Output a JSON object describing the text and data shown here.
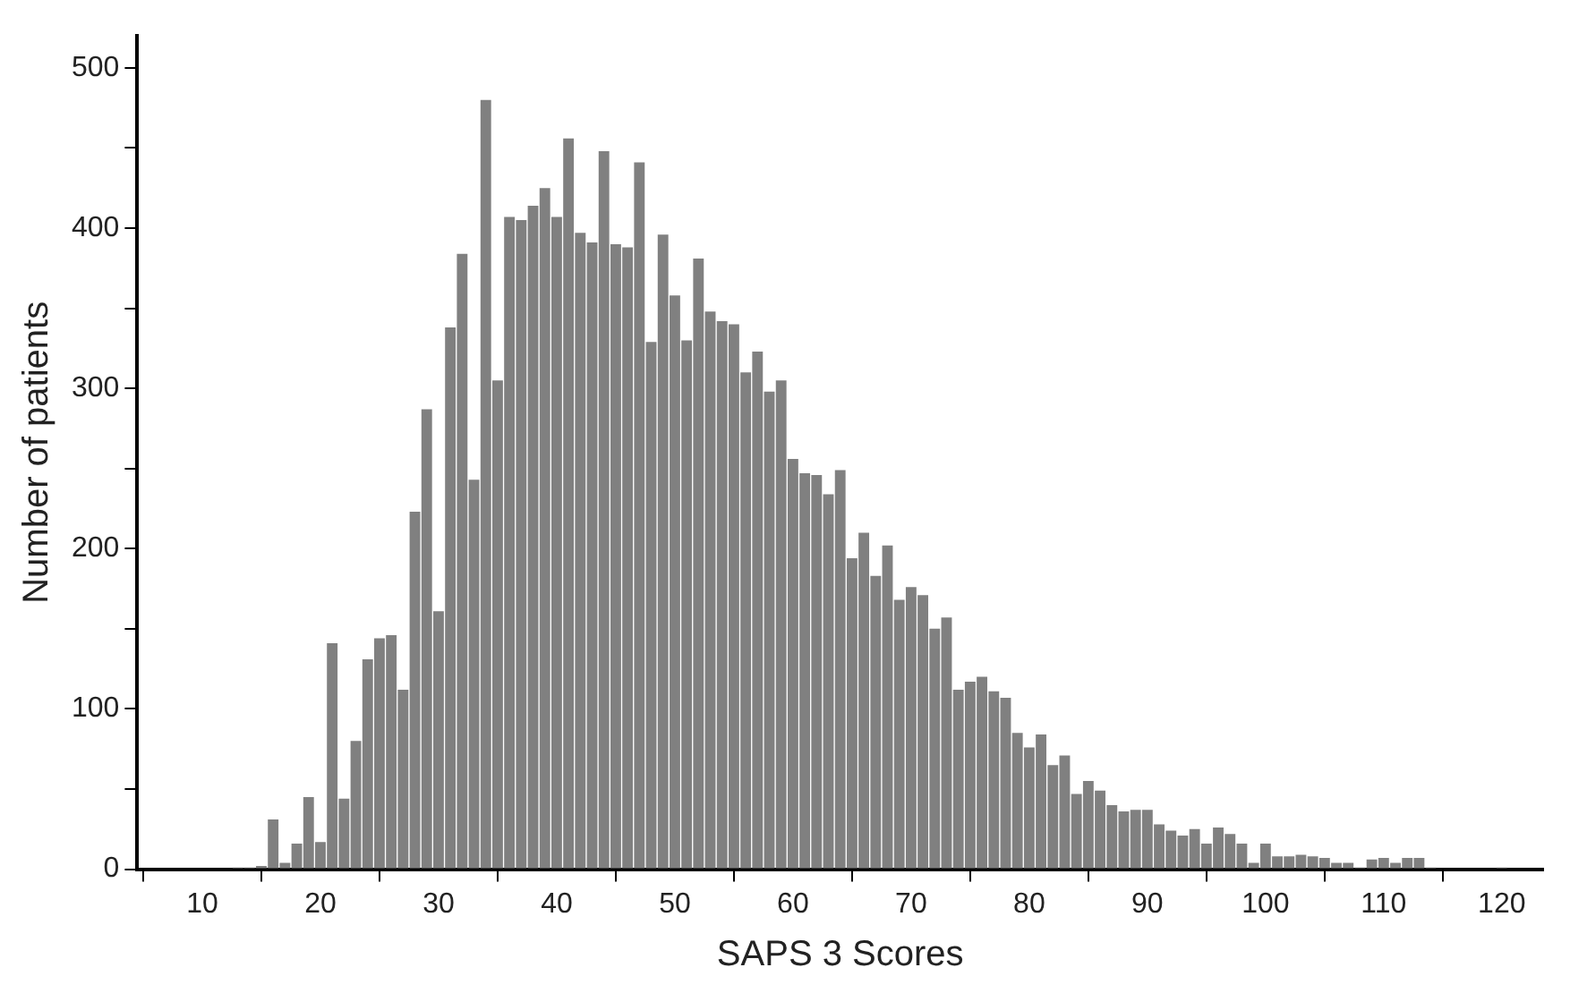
{
  "chart_data": {
    "type": "histogram",
    "xlabel": "SAPS 3 Scores",
    "ylabel": "Number of patients",
    "color": "#808080",
    "bins": [
      12.5,
      13.5,
      14.5,
      15.5,
      16.5,
      17.5,
      18.5,
      19.5,
      20.5,
      21.5,
      22.5,
      23.5,
      24.5,
      25.5,
      26.5,
      27.5,
      28.5,
      29.5,
      30.5,
      31.5,
      32.5,
      33.5,
      34.5,
      35.5,
      36.5,
      37.5,
      38.5,
      39.5,
      40.5,
      41.5,
      42.5,
      43.5,
      44.5,
      45.5,
      46.5,
      47.5,
      48.5,
      49.5,
      50.5,
      51.5,
      52.5,
      53.5,
      54.5,
      55.5,
      56.5,
      57.5,
      58.5,
      59.5,
      60.5,
      61.5,
      62.5,
      63.5,
      64.5,
      65.5,
      66.5,
      67.5,
      68.5,
      69.5,
      70.5,
      71.5,
      72.5,
      73.5,
      74.5,
      75.5,
      76.5,
      77.5,
      78.5,
      79.5,
      80.5,
      81.5,
      82.5,
      83.5,
      84.5,
      85.5,
      86.5,
      87.5,
      88.5,
      89.5,
      90.5,
      91.5,
      92.5,
      93.5,
      94.5,
      95.5,
      96.5,
      97.5,
      98.5,
      99.5,
      100.5,
      101.5,
      102.5,
      103.5,
      104.5,
      105.5,
      106.5,
      107.5,
      108.5,
      109.5,
      110.5,
      111.5,
      112.5,
      113.5,
      114.5,
      115.5,
      116.5,
      117.5,
      118.5,
      119.5,
      120.5
    ],
    "values": [
      1,
      1,
      2,
      31,
      4,
      16,
      45,
      17,
      141,
      44,
      80,
      131,
      144,
      146,
      112,
      223,
      287,
      161,
      338,
      384,
      243,
      480,
      305,
      407,
      405,
      414,
      425,
      407,
      456,
      397,
      391,
      448,
      390,
      388,
      441,
      329,
      396,
      358,
      330,
      381,
      348,
      342,
      340,
      310,
      323,
      298,
      305,
      256,
      247,
      246,
      234,
      249,
      194,
      210,
      183,
      202,
      168,
      176,
      171,
      150,
      157,
      112,
      117,
      120,
      111,
      107,
      85,
      76,
      84,
      65,
      71,
      47,
      55,
      49,
      40,
      36,
      37,
      37,
      28,
      24,
      21,
      25,
      16,
      26,
      22,
      16,
      4,
      16,
      8,
      8,
      9,
      8,
      7,
      4,
      4,
      1,
      6,
      7,
      4,
      7,
      7,
      1,
      0,
      0,
      0,
      0,
      0,
      1
    ],
    "xlim": [
      4.5,
      123.5
    ],
    "xticks": [
      10,
      20,
      30,
      40,
      50,
      60,
      70,
      80,
      90,
      100,
      110,
      120
    ],
    "ylim": [
      0,
      520
    ],
    "yticks": [
      0,
      {
        "value": 50,
        "label": null
      },
      100,
      {
        "value": 150,
        "label": null
      },
      200,
      {
        "value": 250,
        "label": null
      },
      300,
      {
        "value": 350,
        "label": null
      },
      400,
      {
        "value": 450,
        "label": null
      },
      500
    ],
    "grid": false,
    "legend": false
  }
}
